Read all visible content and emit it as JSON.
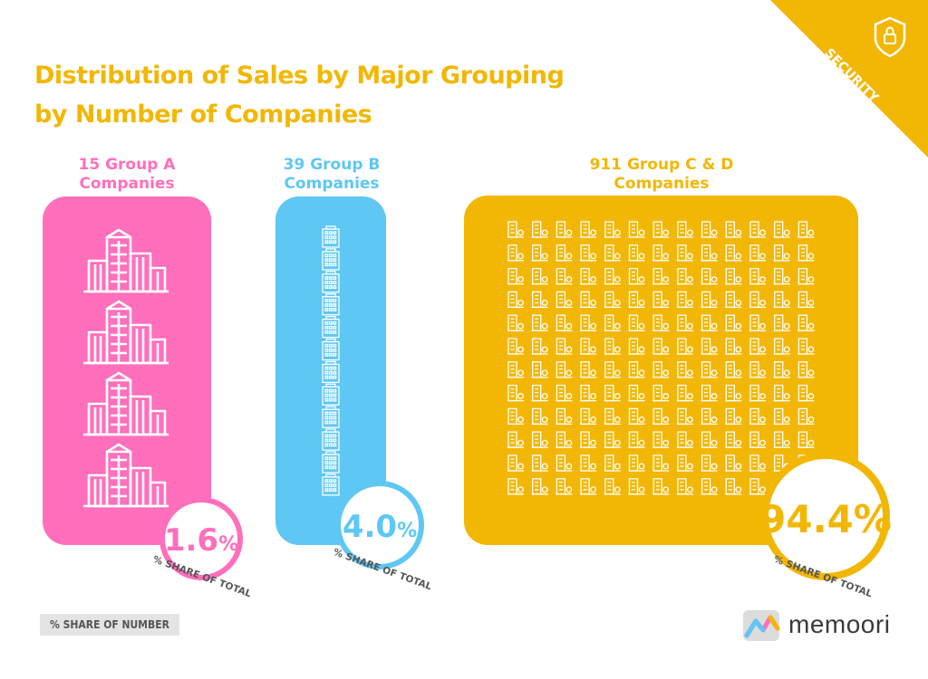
{
  "title": {
    "line1": "Distribution of Sales by Major Grouping",
    "line2": "by Number of Companies"
  },
  "ribbon": {
    "label": "SECURITY",
    "icon": "shield-lock-icon",
    "color": "#f2b705"
  },
  "chart_data": {
    "type": "pictogram",
    "title": "Distribution of Sales by Major Grouping by Number of Companies",
    "categories": [
      "15 Group A Companies",
      "39 Group B Companies",
      "911 Group C & D Companies"
    ],
    "groups": [
      {
        "label_line1": "15 Group A",
        "label_line2": "Companies",
        "companies": 15,
        "share": 1.6,
        "share_label": "1.6",
        "share_unit": "%",
        "caption": "% SHARE OF TOTAL",
        "color": "#ff6fbc",
        "icon_rows": 4,
        "icon_cols": 1
      },
      {
        "label_line1": "39 Group B",
        "label_line2": "Companies",
        "companies": 39,
        "share": 4.0,
        "share_label": "4.0",
        "share_unit": "%",
        "caption": "% SHARE OF TOTAL",
        "color": "#5ec7f4",
        "icon_rows": 12,
        "icon_cols": 1
      },
      {
        "label_line1": "911 Group C & D",
        "label_line2": "Companies",
        "companies": 911,
        "share": 94.4,
        "share_label": "94.4%",
        "share_unit": "",
        "caption": "% SHARE OF TOTAL",
        "color": "#f2b705",
        "icon_rows": 12,
        "icon_cols": 13
      }
    ],
    "values": [
      1.6,
      4.0,
      94.4
    ],
    "unit": "%"
  },
  "footer": {
    "tag": "% SHARE OF NUMBER"
  },
  "logo": {
    "text": "memoori",
    "icon": "memoori-logo-icon"
  }
}
